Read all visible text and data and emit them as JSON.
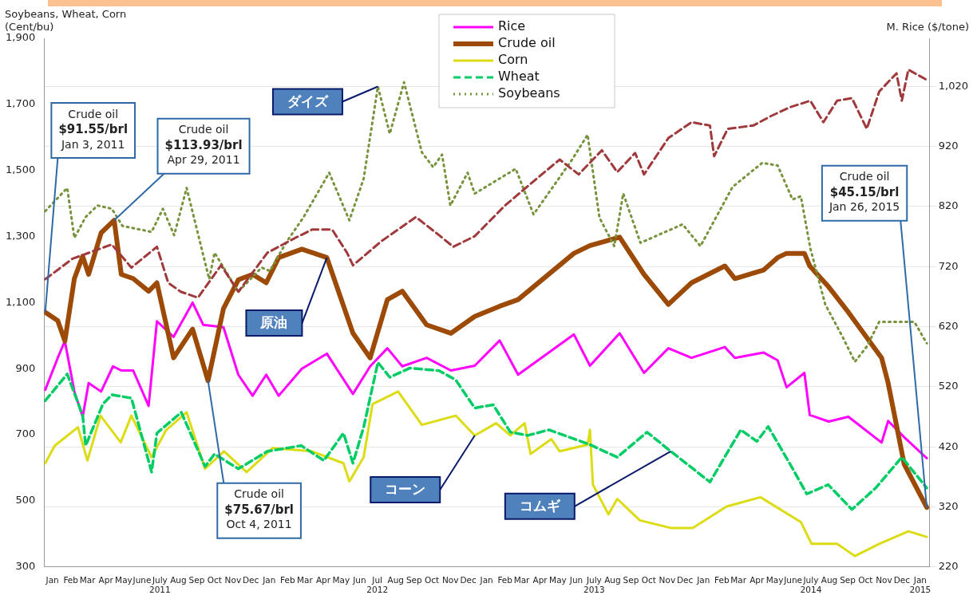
{
  "chart_data": {
    "type": "line",
    "ylabel": "Soybeans, Wheat, Corn\n(Cent/bu)",
    "y2label": "M. Rice ($/tone)",
    "xlim": [
      "2011-01-01",
      "2015-01-31"
    ],
    "xticks": [
      {
        "value": "2011-01-15",
        "label": "Jan"
      },
      {
        "value": "2011-02-15",
        "label": "Feb"
      },
      {
        "value": "2011-03-15",
        "label": "Mar"
      },
      {
        "value": "2011-04-15",
        "label": "Apr"
      },
      {
        "value": "2011-05-15",
        "label": "May"
      },
      {
        "value": "2011-06-15",
        "label": "June"
      },
      {
        "value": "2011-07-15",
        "label": "July\n2011"
      },
      {
        "value": "2011-08-15",
        "label": "Aug"
      },
      {
        "value": "2011-09-15",
        "label": "Sep"
      },
      {
        "value": "2011-10-15",
        "label": "Oct"
      },
      {
        "value": "2011-11-15",
        "label": "Nov"
      },
      {
        "value": "2011-12-15",
        "label": "Dec"
      },
      {
        "value": "2012-01-15",
        "label": "Jan"
      },
      {
        "value": "2012-02-15",
        "label": "Feb"
      },
      {
        "value": "2012-03-15",
        "label": "Mar"
      },
      {
        "value": "2012-04-15",
        "label": "Apr"
      },
      {
        "value": "2012-05-15",
        "label": "May"
      },
      {
        "value": "2012-06-15",
        "label": "Jun"
      },
      {
        "value": "2012-07-15",
        "label": "Jul\n2012"
      },
      {
        "value": "2012-08-15",
        "label": "Aug"
      },
      {
        "value": "2012-09-15",
        "label": "Sep"
      },
      {
        "value": "2012-10-15",
        "label": "Oct"
      },
      {
        "value": "2012-11-15",
        "label": "Nov"
      },
      {
        "value": "2012-12-15",
        "label": "Dec"
      },
      {
        "value": "2013-01-15",
        "label": "Jan"
      },
      {
        "value": "2013-02-15",
        "label": "Feb"
      },
      {
        "value": "2013-03-15",
        "label": "Mar"
      },
      {
        "value": "2013-04-15",
        "label": "Apr"
      },
      {
        "value": "2013-05-15",
        "label": "May"
      },
      {
        "value": "2013-06-15",
        "label": "Jun"
      },
      {
        "value": "2013-07-15",
        "label": "July\n2013"
      },
      {
        "value": "2013-08-15",
        "label": "Aug"
      },
      {
        "value": "2013-09-15",
        "label": "Sep"
      },
      {
        "value": "2013-10-15",
        "label": "Oct"
      },
      {
        "value": "2013-11-15",
        "label": "Nov"
      },
      {
        "value": "2013-12-15",
        "label": "Dec"
      },
      {
        "value": "2014-01-15",
        "label": "Jan"
      },
      {
        "value": "2014-02-15",
        "label": "Feb"
      },
      {
        "value": "2014-03-15",
        "label": "Mar"
      },
      {
        "value": "2014-04-15",
        "label": "Apr"
      },
      {
        "value": "2014-05-15",
        "label": "May"
      },
      {
        "value": "2014-06-15",
        "label": "June"
      },
      {
        "value": "2014-07-15",
        "label": "July\n2014"
      },
      {
        "value": "2014-08-15",
        "label": "Aug"
      },
      {
        "value": "2014-09-15",
        "label": "Sep"
      },
      {
        "value": "2014-10-15",
        "label": "Oct"
      },
      {
        "value": "2014-11-15",
        "label": "Nov"
      },
      {
        "value": "2014-12-15",
        "label": "Dec"
      },
      {
        "value": "2015-01-15",
        "label": "Jan\n2015"
      }
    ],
    "ylim": [
      300,
      1900
    ],
    "yticks": [
      300,
      500,
      700,
      900,
      {
        "value": 1100,
        "label": "1,100"
      },
      {
        "value": 1300,
        "label": "1,300"
      },
      {
        "value": 1500,
        "label": "1,500"
      },
      {
        "value": 1700,
        "label": "1,700"
      },
      {
        "value": 1900,
        "label": "1,900"
      }
    ],
    "y2lim": [
      220,
      1100
    ],
    "y2ticks": [
      220,
      320,
      420,
      520,
      620,
      720,
      820,
      920,
      {
        "value": 1020,
        "label": "1,020"
      }
    ],
    "grid": "y",
    "legend": "top",
    "marker": "none",
    "series": [
      {
        "name": "Rice",
        "color": "#ff00ff",
        "axis": "y2",
        "line_style": "solid",
        "x": [
          "2011-01-03",
          "2011-01-24",
          "2011-02-05",
          "2011-02-21",
          "2011-03-07",
          "2011-03-17",
          "2011-04-07",
          "2011-04-27",
          "2011-05-11",
          "2011-05-31",
          "2011-06-26",
          "2011-07-10",
          "2011-08-07",
          "2011-09-08",
          "2011-09-26",
          "2011-10-30",
          "2011-11-24",
          "2011-12-18",
          "2012-01-10",
          "2012-01-31",
          "2012-03-10",
          "2012-04-21",
          "2012-06-04",
          "2012-07-03",
          "2012-08-01",
          "2012-08-26",
          "2012-10-06",
          "2012-11-16",
          "2012-12-26",
          "2013-02-06",
          "2013-03-09",
          "2013-06-11",
          "2013-07-08",
          "2013-08-27",
          "2013-10-07",
          "2013-11-17",
          "2013-12-26",
          "2014-02-20",
          "2014-03-09",
          "2014-04-26",
          "2014-05-20",
          "2014-06-04",
          "2014-07-04",
          "2014-07-13",
          "2014-08-14",
          "2014-09-16",
          "2014-11-11",
          "2014-11-22",
          "2014-12-19",
          "2015-01-26"
        ],
        "values": [
          515,
          568,
          596,
          512,
          470,
          526,
          512,
          554,
          547,
          547,
          488,
          629,
          603,
          660,
          623,
          619,
          540,
          505,
          540,
          505,
          550,
          575,
          508,
          554,
          584,
          554,
          568,
          547,
          555,
          597,
          540,
          607,
          555,
          609,
          543,
          584,
          568,
          586,
          568,
          577,
          564,
          519,
          543,
          473,
          462,
          470,
          427,
          463,
          436,
          401
        ]
      },
      {
        "name": "Crude oil",
        "color": "#9c4a06",
        "axis": "y2",
        "line_style": "solid",
        "x": [
          "2011-01-03",
          "2011-01-24",
          "2011-02-05",
          "2011-02-21",
          "2011-03-07",
          "2011-03-17",
          "2011-04-07",
          "2011-04-29",
          "2011-05-11",
          "2011-05-31",
          "2011-06-26",
          "2011-07-10",
          "2011-08-07",
          "2011-09-08",
          "2011-10-04",
          "2011-10-30",
          "2011-11-24",
          "2011-12-18",
          "2012-01-10",
          "2012-01-31",
          "2012-03-10",
          "2012-04-21",
          "2012-06-04",
          "2012-07-03",
          "2012-08-01",
          "2012-08-26",
          "2012-10-06",
          "2012-11-16",
          "2012-12-26",
          "2013-02-06",
          "2013-03-09",
          "2013-06-11",
          "2013-07-08",
          "2013-08-27",
          "2013-10-07",
          "2013-11-17",
          "2013-12-26",
          "2014-02-20",
          "2014-03-09",
          "2014-04-26",
          "2014-05-20",
          "2014-06-04",
          "2014-07-04",
          "2014-07-13",
          "2014-08-14",
          "2014-09-16",
          "2014-11-11",
          "2014-11-22",
          "2014-12-19",
          "2015-01-26"
        ],
        "values": [
          644,
          630,
          596,
          700,
          737,
          707,
          776,
          797,
          707,
          700,
          679,
          693,
          568,
          616,
          530,
          650,
          698,
          707,
          693,
          735,
          749,
          735,
          609,
          568,
          665,
          679,
          623,
          609,
          637,
          654,
          665,
          742,
          755,
          769,
          707,
          657,
          693,
          721,
          700,
          714,
          735,
          742,
          742,
          721,
          686,
          644,
          568,
          526,
          391,
          319
        ]
      },
      {
        "name": "Corn",
        "color": "#dcdc14",
        "line_style": "solid",
        "x": [
          "2011-01-03",
          "2011-01-19",
          "2011-02-27",
          "2011-03-15",
          "2011-04-06",
          "2011-05-10",
          "2011-05-28",
          "2011-07-01",
          "2011-07-25",
          "2011-08-29",
          "2011-09-29",
          "2011-10-31",
          "2011-12-08",
          "2012-01-21",
          "2012-03-27",
          "2012-05-19",
          "2012-05-29",
          "2012-06-22",
          "2012-07-07",
          "2012-08-19",
          "2012-09-28",
          "2012-11-24",
          "2012-12-26",
          "2013-01-31",
          "2013-02-24",
          "2013-03-20",
          "2013-03-30",
          "2013-05-04",
          "2013-05-18",
          "2013-07-04",
          "2013-07-08",
          "2013-07-13",
          "2013-08-08",
          "2013-08-23",
          "2013-09-30",
          "2013-11-21",
          "2013-12-28",
          "2014-02-23",
          "2014-04-21",
          "2014-06-28",
          "2014-07-16",
          "2014-08-28",
          "2014-09-27",
          "2014-11-07",
          "2014-12-26",
          "2015-01-26"
        ],
        "values": [
          614,
          667,
          723,
          622,
          758,
          677,
          758,
          632,
          713,
          768,
          597,
          650,
          587,
          660,
          650,
          614,
          559,
          632,
          793,
          831,
          730,
          758,
          698,
          735,
          698,
          735,
          642,
          687,
          650,
          670,
          715,
          549,
          459,
          506,
          441,
          418,
          418,
          483,
          511,
          436,
          370,
          370,
          333,
          370,
          408,
          391
        ]
      },
      {
        "name": "Wheat",
        "color": "#00cc66",
        "line_style": "dashed",
        "x": [
          "2011-01-03",
          "2011-02-09",
          "2011-03-07",
          "2011-03-12",
          "2011-04-10",
          "2011-04-25",
          "2011-05-28",
          "2011-07-01",
          "2011-07-10",
          "2011-08-20",
          "2011-09-29",
          "2011-10-15",
          "2011-11-24",
          "2012-01-12",
          "2012-03-09",
          "2012-04-16",
          "2012-05-19",
          "2012-06-04",
          "2012-06-22",
          "2012-07-16",
          "2012-08-05",
          "2012-09-08",
          "2012-10-27",
          "2012-11-24",
          "2012-12-26",
          "2013-01-26",
          "2013-02-24",
          "2013-03-25",
          "2013-04-30",
          "2013-07-08",
          "2013-08-23",
          "2013-10-12",
          "2013-11-21",
          "2014-01-26",
          "2014-03-19",
          "2014-04-15",
          "2014-05-04",
          "2014-06-09",
          "2014-07-08",
          "2014-08-13",
          "2014-09-22",
          "2014-11-01",
          "2014-12-15",
          "2015-01-26"
        ],
        "values": [
          803,
          884,
          758,
          667,
          793,
          821,
          811,
          587,
          705,
          768,
          604,
          642,
          597,
          650,
          667,
          622,
          705,
          614,
          723,
          919,
          874,
          902,
          894,
          866,
          781,
          791,
          708,
          698,
          715,
          670,
          632,
          708,
          650,
          557,
          715,
          680,
          725,
          614,
          521,
          549,
          474,
          539,
          632,
          539
        ]
      },
      {
        "name": "Soybeans",
        "color": "#77933c",
        "line_style": "dotted",
        "x": [
          "2011-01-03",
          "2011-02-09",
          "2011-02-21",
          "2011-03-12",
          "2011-04-01",
          "2011-04-25",
          "2011-05-13",
          "2011-07-01",
          "2011-07-20",
          "2011-08-08",
          "2011-08-29",
          "2011-10-06",
          "2011-10-15",
          "2011-11-24",
          "2012-01-02",
          "2012-01-16",
          "2012-02-14",
          "2012-03-13",
          "2012-04-25",
          "2012-05-29",
          "2012-06-22",
          "2012-07-16",
          "2012-08-05",
          "2012-08-29",
          "2012-09-28",
          "2012-10-17",
          "2012-11-01",
          "2012-11-15",
          "2012-12-14",
          "2012-12-26",
          "2013-03-05",
          "2013-04-04",
          "2013-06-08",
          "2013-07-04",
          "2013-07-24",
          "2013-08-18",
          "2013-09-02",
          "2013-10-01",
          "2013-12-11",
          "2014-01-10",
          "2014-03-05",
          "2014-04-24",
          "2014-05-20",
          "2014-06-14",
          "2014-06-28",
          "2014-07-14",
          "2014-08-08",
          "2014-09-07",
          "2014-09-27",
          "2014-10-17",
          "2014-11-07",
          "2015-01-05",
          "2015-01-26"
        ],
        "values": [
          1377,
          1447,
          1296,
          1359,
          1394,
          1384,
          1332,
          1314,
          1384,
          1304,
          1447,
          1171,
          1251,
          1133,
          1206,
          1196,
          1286,
          1359,
          1493,
          1349,
          1475,
          1754,
          1611,
          1767,
          1555,
          1510,
          1548,
          1394,
          1493,
          1430,
          1505,
          1367,
          1533,
          1608,
          1357,
          1271,
          1430,
          1281,
          1337,
          1271,
          1450,
          1523,
          1515,
          1412,
          1422,
          1264,
          1095,
          994,
          921,
          967,
          1042,
          1042,
          977
        ]
      },
      {
        "color": "#a0393c",
        "line_style": "dashed",
        "x": [
          "2011-01-03",
          "2011-02-18",
          "2011-04-25",
          "2011-05-28",
          "2011-07-10",
          "2011-07-29",
          "2011-08-19",
          "2011-09-17",
          "2011-10-26",
          "2011-11-24",
          "2012-01-12",
          "2012-02-28",
          "2012-03-27",
          "2012-04-30",
          "2012-05-25",
          "2012-06-04",
          "2012-07-22",
          "2012-09-18",
          "2012-10-27",
          "2012-11-20",
          "2012-12-26",
          "2013-02-15",
          "2013-04-04",
          "2013-05-18",
          "2013-06-19",
          "2013-07-28",
          "2013-08-23",
          "2013-09-22",
          "2013-10-07",
          "2013-11-17",
          "2013-12-26",
          "2014-01-26",
          "2014-02-02",
          "2014-02-25",
          "2014-04-09",
          "2014-05-08",
          "2014-06-09",
          "2014-07-14",
          "2014-08-05",
          "2014-08-28",
          "2014-09-22",
          "2014-10-17",
          "2014-11-07",
          "2014-12-06",
          "2014-12-15",
          "2014-12-26",
          "2015-01-26"
        ],
        "values": [
          1171,
          1233,
          1276,
          1206,
          1269,
          1160,
          1133,
          1115,
          1213,
          1133,
          1251,
          1296,
          1321,
          1321,
          1251,
          1213,
          1286,
          1359,
          1304,
          1269,
          1301,
          1394,
          1467,
          1533,
          1488,
          1561,
          1495,
          1553,
          1488,
          1598,
          1646,
          1636,
          1543,
          1626,
          1636,
          1664,
          1691,
          1711,
          1646,
          1711,
          1719,
          1626,
          1739,
          1794,
          1711,
          1805,
          1774
        ]
      }
    ],
    "annotations": [
      {
        "text": "Crude oil\n$91.55/brl\nJan 3, 2011",
        "x": "2011-01-03",
        "y": 1071
      },
      {
        "text": "Crude oil\n$113.93/brl\nApr 29, 2011",
        "x": "2011-04-29",
        "y": 1349
      },
      {
        "text": "Crude oil\n$75.67/brl\nOct 4, 2011",
        "x": "2011-10-04",
        "y": 864
      },
      {
        "text": "Crude oil\n$45.15/brl\nJan 26, 2015",
        "x": "2015-01-26",
        "y": 480
      },
      {
        "text": "ダイズ",
        "x": "2012-07-16",
        "y": 1754
      },
      {
        "text": "原油",
        "x": "2012-04-21",
        "y": 1236
      },
      {
        "text": "コーン",
        "x": "2012-12-26",
        "y": 698
      },
      {
        "text": "コムギ",
        "x": "2013-11-21",
        "y": 650
      }
    ]
  }
}
